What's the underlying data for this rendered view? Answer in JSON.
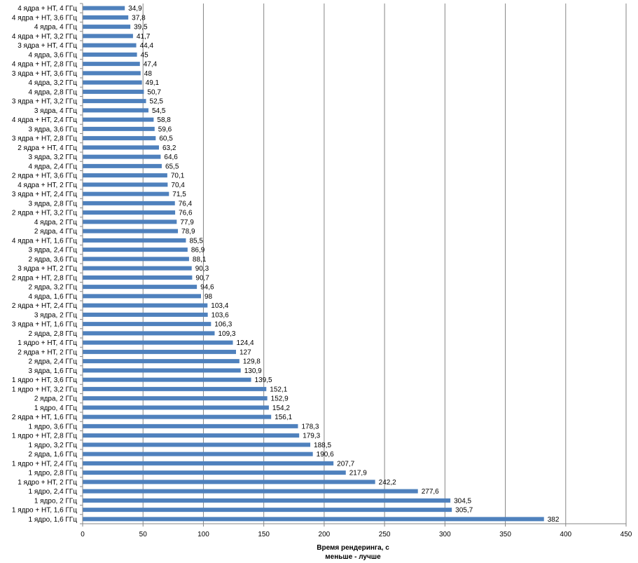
{
  "chart_data": {
    "type": "bar",
    "orientation": "horizontal",
    "categories": [
      "4 ядра + НТ, 4 ГГц",
      "4 ядра + НТ, 3,6 ГГц",
      "4 ядра, 4 ГГц",
      "4 ядра + НТ, 3,2 ГГц",
      "3 ядра + НТ, 4 ГГц",
      "4 ядра, 3,6 ГГц",
      "4 ядра + НТ, 2,8 ГГц",
      "3 ядра + НТ, 3,6 ГГц",
      "4 ядра, 3,2 ГГц",
      "4 ядра, 2,8 ГГц",
      "3 ядра + НТ, 3,2 ГГц",
      "3 ядра, 4 ГГц",
      "4 ядра + НТ, 2,4 ГГц",
      "3 ядра, 3,6 ГГц",
      "3 ядра + НТ, 2,8 ГГц",
      "2 ядра + НТ, 4 ГГц",
      "3 ядра, 3,2 ГГц",
      "4 ядра, 2,4 ГГц",
      "2 ядра + НТ, 3,6 ГГц",
      "4 ядра + НТ, 2 ГГц",
      "3 ядра + НТ, 2,4 ГГц",
      "3 ядра, 2,8 ГГц",
      "2 ядра + НТ, 3,2 ГГц",
      "4 ядра, 2 ГГц",
      "2 ядра, 4 ГГц",
      "4 ядра + НТ, 1,6 ГГц",
      "3 ядра, 2,4 ГГц",
      "2 ядра, 3,6 ГГц",
      "3 ядра + НТ, 2 ГГц",
      "2 ядра + НТ, 2,8 ГГц",
      "2 ядра, 3,2 ГГц",
      "4 ядра, 1,6 ГГц",
      "2 ядра + НТ, 2,4 ГГц",
      "3 ядра, 2 ГГц",
      "3 ядра + НТ, 1,6 ГГц",
      "2 ядра, 2,8 ГГц",
      "1 ядро + НТ, 4 ГГц",
      "2 ядра + НТ, 2 ГГц",
      "2 ядра, 2,4 ГГц",
      "3 ядра, 1,6 ГГц",
      "1 ядро + НТ, 3,6 ГГц",
      "1 ядро + НТ, 3,2 ГГц",
      "2 ядра, 2 ГГц",
      "1 ядро, 4 ГГц",
      "2 ядра + НТ, 1,6 ГГц",
      "1 ядро, 3,6 ГГц",
      "1 ядро + НТ, 2,8 ГГц",
      "1 ядро, 3,2 ГГц",
      "2 ядра, 1,6 ГГц",
      "1 ядро + НТ, 2,4 ГГц",
      "1 ядро, 2,8 ГГц",
      "1 ядро + НТ, 2 ГГц",
      "1 ядро, 2,4 ГГц",
      "1 ядро, 2 ГГц",
      "1 ядро + НТ, 1,6 ГГц",
      "1 ядро, 1,6 ГГц"
    ],
    "values": [
      34.9,
      37.8,
      39.5,
      41.7,
      44.4,
      45,
      47.4,
      48,
      49.1,
      50.7,
      52.5,
      54.5,
      58.8,
      59.6,
      60.5,
      63.2,
      64.6,
      65.5,
      70.1,
      70.4,
      71.5,
      76.4,
      76.6,
      77.9,
      78.9,
      85.5,
      86.9,
      88.1,
      90.3,
      90.7,
      94.6,
      98,
      103.4,
      103.6,
      106.3,
      109.3,
      124.4,
      127,
      129.8,
      130.9,
      139.5,
      152.1,
      152.9,
      154.2,
      156.1,
      178.3,
      179.3,
      188.5,
      190.6,
      207.7,
      217.9,
      242.2,
      277.6,
      304.5,
      305.7,
      382
    ],
    "value_labels": [
      "34,9",
      "37,8",
      "39,5",
      "41,7",
      "44,4",
      "45",
      "47,4",
      "48",
      "49,1",
      "50,7",
      "52,5",
      "54,5",
      "58,8",
      "59,6",
      "60,5",
      "63,2",
      "64,6",
      "65,5",
      "70,1",
      "70,4",
      "71,5",
      "76,4",
      "76,6",
      "77,9",
      "78,9",
      "85,5",
      "86,9",
      "88,1",
      "90,3",
      "90,7",
      "94,6",
      "98",
      "103,4",
      "103,6",
      "106,3",
      "109,3",
      "124,4",
      "127",
      "129,8",
      "130,9",
      "139,5",
      "152,1",
      "152,9",
      "154,2",
      "156,1",
      "178,3",
      "179,3",
      "188,5",
      "190,6",
      "207,7",
      "217,9",
      "242,2",
      "277,6",
      "304,5",
      "305,7",
      "382"
    ],
    "x_ticks": [
      "0",
      "50",
      "100",
      "150",
      "200",
      "250",
      "300",
      "350",
      "400",
      "450"
    ],
    "xlim": [
      0,
      450
    ],
    "xlabel_line1": "Время рендеринга, с",
    "xlabel_line2": "меньше - лучше",
    "grid": true,
    "legend": "none",
    "bar_color": "#4f81bd"
  }
}
